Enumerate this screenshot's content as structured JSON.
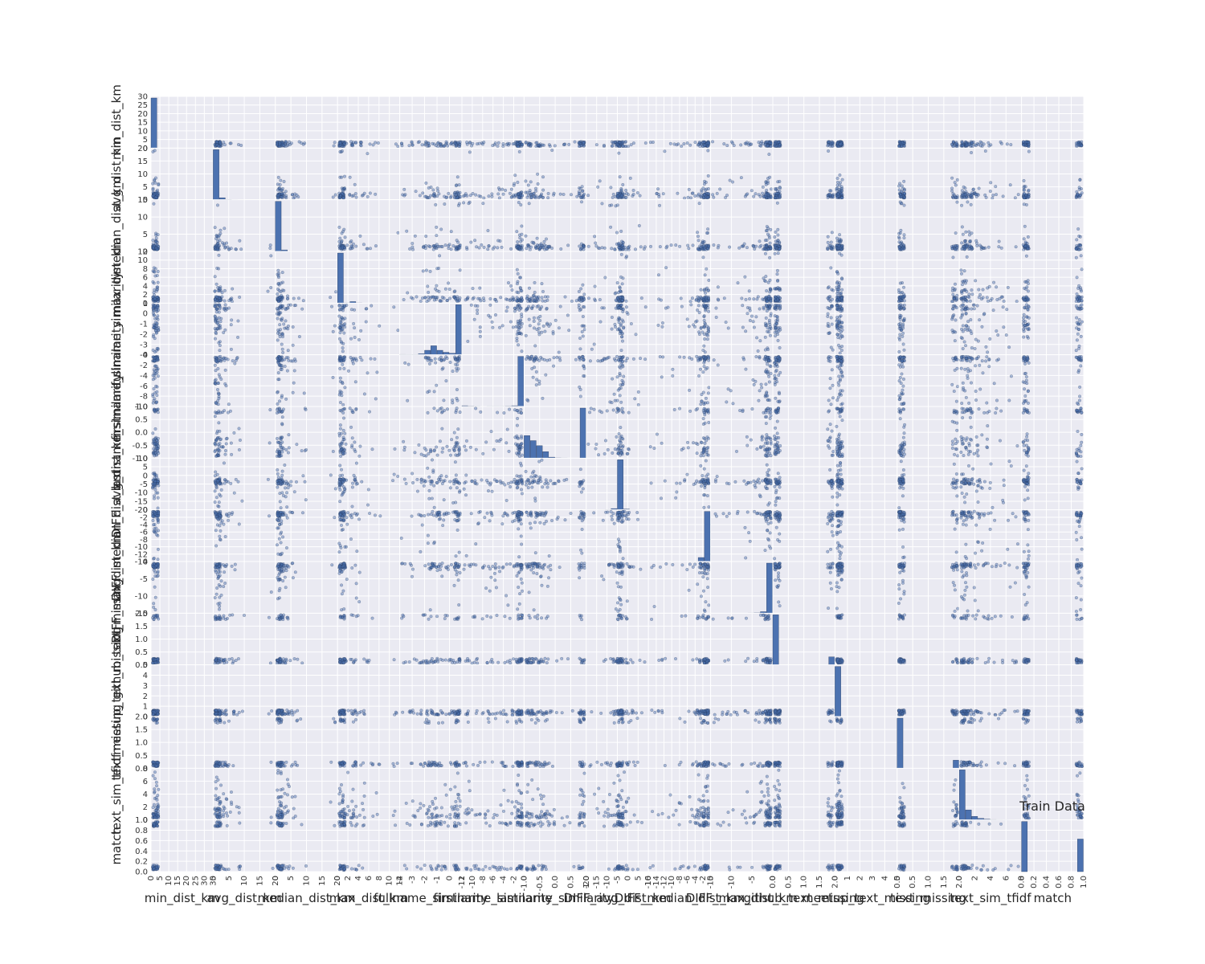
{
  "chart_data": {
    "type": "scatter",
    "subtype": "scatter_matrix",
    "title": "Train Data",
    "grid": true,
    "diagonal": "histogram",
    "colors": {
      "background": "#eaeaf2",
      "grid": "#ffffff",
      "marker": "#4c72b0",
      "bar": "#4c72b0",
      "marker_edge": "#1f2f4f"
    },
    "variables": [
      {
        "name": "min_dist_km",
        "xticks": [
          "0",
          "5",
          "10",
          "15",
          "20",
          "25",
          "30",
          "35"
        ],
        "yticks": [
          "0",
          "5",
          "10",
          "15",
          "20",
          "25",
          "30"
        ],
        "range": [
          0,
          35
        ],
        "hist": [
          28,
          0,
          0,
          0,
          0,
          0,
          0,
          0,
          0,
          0
        ]
      },
      {
        "name": "avg_dist_km",
        "xticks": [
          "0",
          "5",
          "10",
          "15",
          "20"
        ],
        "yticks": [
          "0",
          "5",
          "10",
          "15",
          "20"
        ],
        "range": [
          0,
          20
        ],
        "hist": [
          1000,
          40,
          6,
          2,
          1,
          0,
          0,
          0,
          0,
          1
        ]
      },
      {
        "name": "median_dist_km",
        "xticks": [
          "0",
          "5",
          "10",
          "15",
          "20"
        ],
        "yticks": [
          "0",
          "5",
          "10",
          "15"
        ],
        "range": [
          0,
          20
        ],
        "hist": [
          1000,
          30,
          5,
          2,
          1,
          0,
          0,
          0,
          0,
          1
        ]
      },
      {
        "name": "max_dist_km",
        "xticks": [
          "0",
          "2",
          "4",
          "6",
          "8",
          "10",
          "12"
        ],
        "yticks": [
          "0",
          "2",
          "4",
          "6",
          "8",
          "10",
          "12"
        ],
        "range": [
          0,
          12
        ],
        "hist": [
          1000,
          4,
          30,
          4,
          2,
          1,
          1,
          0,
          0,
          1
        ]
      },
      {
        "name": "fullname_similarity",
        "xticks": [
          "-4",
          "-3",
          "-2",
          "-1",
          "0",
          "1"
        ],
        "yticks": [
          "-4",
          "-3",
          "-2",
          "-1",
          "0",
          "1"
        ],
        "range": [
          -4.5,
          1
        ],
        "hist": [
          8,
          6,
          6,
          20,
          90,
          180,
          90,
          50,
          30,
          1000
        ]
      },
      {
        "name": "firstname_similarity",
        "xticks": [
          "-12",
          "-10",
          "-8",
          "-6",
          "-4",
          "-2",
          "0"
        ],
        "yticks": [
          "-10",
          "-8",
          "-6",
          "-4",
          "-2",
          "0"
        ],
        "range": [
          -12,
          0
        ],
        "hist": [
          15,
          8,
          6,
          5,
          6,
          6,
          6,
          8,
          15,
          1000
        ]
      },
      {
        "name": "lastname_similarity",
        "xticks": [
          "-1.0",
          "-0.5",
          "0.0",
          "0.5",
          "1.0"
        ],
        "yticks": [
          "-1.0",
          "-0.5",
          "0.0",
          "0.5",
          "1.0"
        ],
        "range": [
          -1,
          1
        ],
        "hist": [
          450,
          350,
          250,
          130,
          20,
          5,
          3,
          2,
          2,
          1000
        ]
      },
      {
        "name": "DIFF_avg_dist_km",
        "xticks": [
          "-20",
          "-15",
          "-10",
          "-5",
          "0",
          "5",
          "10"
        ],
        "yticks": [
          "-20",
          "-15",
          "-10",
          "-5",
          "0",
          "5",
          "10"
        ],
        "range": [
          -20,
          10
        ],
        "hist": [
          1,
          1,
          2,
          5,
          25,
          1000,
          15,
          3,
          1,
          1
        ]
      },
      {
        "name": "DIFF_median_dist_km",
        "xticks": [
          "-16",
          "-14",
          "-12",
          "-10",
          "-8",
          "-6",
          "-4",
          "-2",
          "0"
        ],
        "yticks": [
          "-14",
          "-12",
          "-10",
          "-8",
          "-6",
          "-4",
          "-2",
          "0"
        ],
        "range": [
          -16,
          0
        ],
        "hist": [
          1,
          1,
          1,
          1,
          2,
          2,
          3,
          5,
          80,
          1000
        ]
      },
      {
        "name": "DIFF_max_dist_km",
        "xticks": [
          "-15",
          "-10",
          "-5",
          "0"
        ],
        "yticks": [
          "-15",
          "-10",
          "-5",
          "0"
        ],
        "range": [
          -18,
          0
        ],
        "hist": [
          1,
          1,
          1,
          1,
          1,
          2,
          3,
          6,
          30,
          1000
        ]
      },
      {
        "name": "github_text_missing",
        "xticks": [
          "0.0",
          "0.5",
          "1.0",
          "1.5",
          "2.0"
        ],
        "yticks": [
          "0.0",
          "0.5",
          "1.0",
          "1.5",
          "2.0"
        ],
        "range": [
          0,
          2
        ],
        "hist": [
          1000,
          0,
          0,
          0,
          0,
          0,
          0,
          0,
          0,
          160
        ]
      },
      {
        "name": "meetup_text_missing",
        "xticks": [
          "0",
          "1",
          "2",
          "3",
          "4",
          "5"
        ],
        "yticks": [
          "0",
          "1",
          "2",
          "3",
          "4",
          "5"
        ],
        "range": [
          0,
          5
        ],
        "hist": [
          1000,
          0,
          0,
          0,
          0,
          0,
          0,
          0,
          0,
          0
        ]
      },
      {
        "name": "text_missing",
        "xticks": [
          "0.0",
          "0.5",
          "1.0",
          "1.5",
          "2.0"
        ],
        "yticks": [
          "0.0",
          "0.5",
          "1.0",
          "1.5",
          "2.0"
        ],
        "range": [
          0,
          2
        ],
        "hist": [
          1000,
          0,
          0,
          0,
          0,
          0,
          0,
          0,
          0,
          160
        ]
      },
      {
        "name": "text_sim_tfidf",
        "xticks": [
          "0",
          "2",
          "4",
          "6",
          "8"
        ],
        "yticks": [
          "0",
          "2",
          "4",
          "6",
          "8"
        ],
        "range": [
          0,
          8
        ],
        "hist": [
          1000,
          200,
          70,
          30,
          15,
          8,
          4,
          3,
          2,
          1
        ]
      },
      {
        "name": "match",
        "xticks": [
          "0.0",
          "0.2",
          "0.4",
          "0.6",
          "0.8",
          "1.0"
        ],
        "yticks": [
          "0.0",
          "0.2",
          "0.4",
          "0.6",
          "0.8",
          "1.0"
        ],
        "range": [
          0,
          1
        ],
        "hist": [
          1000,
          0,
          0,
          0,
          0,
          0,
          0,
          0,
          0,
          650
        ]
      }
    ]
  }
}
